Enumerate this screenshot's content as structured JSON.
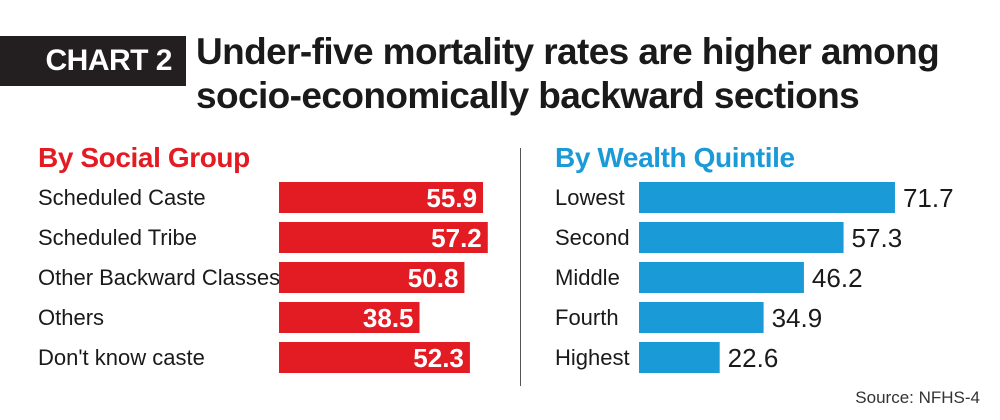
{
  "badge": "CHART 2",
  "title": "Under-five mortality rates are higher among socio-economically backward sections",
  "source": "Source: NFHS-4",
  "colors": {
    "social": "#e31b23",
    "wealth": "#1a9ad7",
    "badge": "#231f20"
  },
  "chart_data": [
    {
      "type": "bar",
      "orientation": "horizontal",
      "title": "By Social Group",
      "categories": [
        "Scheduled Caste",
        "Scheduled Tribe",
        "Other Backward Classes",
        "Others",
        "Don't know caste"
      ],
      "values": [
        55.9,
        57.2,
        50.8,
        38.5,
        52.3
      ],
      "xlim": [
        0,
        75
      ],
      "grid": false,
      "legend": "none",
      "data_labels": "inside-end"
    },
    {
      "type": "bar",
      "orientation": "horizontal",
      "title": "By Wealth Quintile",
      "categories": [
        "Lowest",
        "Second",
        "Middle",
        "Fourth",
        "Highest"
      ],
      "values": [
        71.7,
        57.3,
        46.2,
        34.9,
        22.6
      ],
      "xlim": [
        0,
        75
      ],
      "grid": false,
      "legend": "none",
      "data_labels": "outside-end"
    }
  ]
}
